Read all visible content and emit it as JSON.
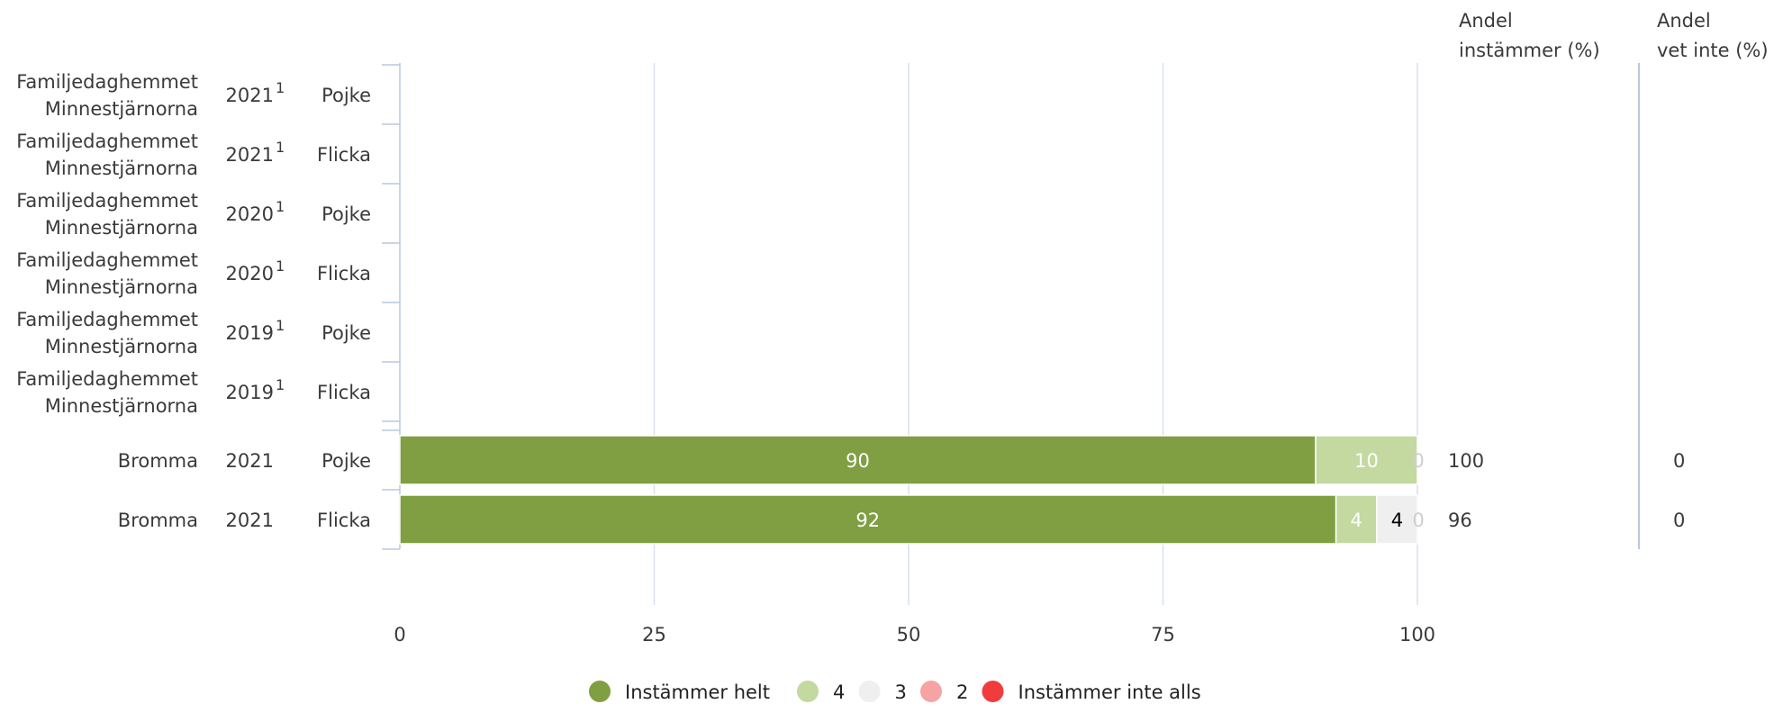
{
  "chart_data": {
    "type": "bar",
    "orientation": "horizontal",
    "stacked": true,
    "xlim": [
      0,
      100
    ],
    "x_ticks": [
      0,
      25,
      50,
      75,
      100
    ],
    "grid": true,
    "legend_position": "bottom-center",
    "row_groups": [
      {
        "rows": [
          {
            "name": "Familjedaghemmet Minnestjärnorna",
            "name_lines": [
              "Familjedaghemmet",
              "Minnestjärnorna"
            ],
            "year": "2021",
            "footnote": "1",
            "gender": "Pojke",
            "values": null
          },
          {
            "name": "Familjedaghemmet Minnestjärnorna",
            "name_lines": [
              "Familjedaghemmet",
              "Minnestjärnorna"
            ],
            "year": "2021",
            "footnote": "1",
            "gender": "Flicka",
            "values": null
          },
          {
            "name": "Familjedaghemmet Minnestjärnorna",
            "name_lines": [
              "Familjedaghemmet",
              "Minnestjärnorna"
            ],
            "year": "2020",
            "footnote": "1",
            "gender": "Pojke",
            "values": null
          },
          {
            "name": "Familjedaghemmet Minnestjärnorna",
            "name_lines": [
              "Familjedaghemmet",
              "Minnestjärnorna"
            ],
            "year": "2020",
            "footnote": "1",
            "gender": "Flicka",
            "values": null
          },
          {
            "name": "Familjedaghemmet Minnestjärnorna",
            "name_lines": [
              "Familjedaghemmet",
              "Minnestjärnorna"
            ],
            "year": "2019",
            "footnote": "1",
            "gender": "Pojke",
            "values": null
          },
          {
            "name": "Familjedaghemmet Minnestjärnorna",
            "name_lines": [
              "Familjedaghemmet",
              "Minnestjärnorna"
            ],
            "year": "2019",
            "footnote": "1",
            "gender": "Flicka",
            "values": null
          }
        ]
      },
      {
        "rows": [
          {
            "name": "Bromma",
            "name_lines": [
              "Bromma"
            ],
            "year": "2021",
            "footnote": "",
            "gender": "Pojke",
            "values": [
              90,
              10,
              0,
              0,
              0
            ],
            "labels": [
              "90",
              "10",
              "",
              "",
              "0"
            ],
            "andel_instammer": "100",
            "andel_vet_inte": "0"
          },
          {
            "name": "Bromma",
            "name_lines": [
              "Bromma"
            ],
            "year": "2021",
            "footnote": "",
            "gender": "Flicka",
            "values": [
              92,
              4,
              4,
              0,
              0
            ],
            "labels": [
              "92",
              "4",
              "4",
              "",
              "0"
            ],
            "andel_instammer": "96",
            "andel_vet_inte": "0"
          }
        ]
      }
    ],
    "series": [
      {
        "name": "Instämmer helt",
        "color": "#7f9f42",
        "label_color": "#ffffff"
      },
      {
        "name": "4",
        "color": "#c3d9a0",
        "label_color": "#ffffff"
      },
      {
        "name": "3",
        "color": "#efefef",
        "label_color": "#000000"
      },
      {
        "name": "2",
        "color": "#f6a3a3",
        "label_color": "#000000"
      },
      {
        "name": "Instämmer inte alls",
        "color": "#f03c3c",
        "label_color": "#ffffff"
      }
    ],
    "column_headers": {
      "andel_instammer": [
        "Andel",
        "instämmer (%)"
      ],
      "andel_vet_inte": [
        "Andel",
        "vet inte (%)"
      ]
    }
  },
  "colors": {
    "text": "#3a3a3a",
    "grid": "#d9e1ee",
    "axis": "#b9c8df",
    "bar_separator": "#ffffff"
  }
}
